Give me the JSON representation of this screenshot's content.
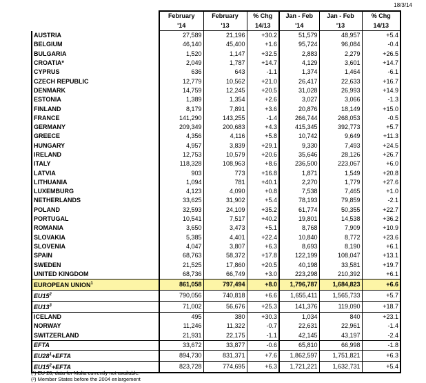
{
  "date": "18/3/14",
  "headers": [
    [
      "February",
      "'14"
    ],
    [
      "February",
      "'13"
    ],
    [
      "% Chg",
      "14/13"
    ],
    [
      "Jan - Feb",
      "'14"
    ],
    [
      "Jan - Feb",
      "'13"
    ],
    [
      "% Chg",
      "14/13"
    ]
  ],
  "rows": [
    {
      "label": "AUSTRIA",
      "v": [
        "27,589",
        "21,196",
        "+30.2",
        "51,579",
        "48,957",
        "+5.4"
      ]
    },
    {
      "label": "BELGIUM",
      "v": [
        "46,140",
        "45,400",
        "+1.6",
        "95,724",
        "96,084",
        "-0.4"
      ]
    },
    {
      "label": "BULGARIA",
      "v": [
        "1,520",
        "1,147",
        "+32.5",
        "2,883",
        "2,279",
        "+26.5"
      ]
    },
    {
      "label": "CROATIA*",
      "v": [
        "2,049",
        "1,787",
        "+14.7",
        "4,129",
        "3,601",
        "+14.7"
      ]
    },
    {
      "label": "CYPRUS",
      "v": [
        "636",
        "643",
        "-1.1",
        "1,374",
        "1,464",
        "-6.1"
      ]
    },
    {
      "label": "CZECH REPUBLIC",
      "v": [
        "12,779",
        "10,562",
        "+21.0",
        "26,417",
        "22,633",
        "+16.7"
      ]
    },
    {
      "label": "DENMARK",
      "v": [
        "14,759",
        "12,245",
        "+20.5",
        "31,028",
        "26,993",
        "+14.9"
      ]
    },
    {
      "label": "ESTONIA",
      "v": [
        "1,389",
        "1,354",
        "+2.6",
        "3,027",
        "3,066",
        "-1.3"
      ]
    },
    {
      "label": "FINLAND",
      "v": [
        "8,179",
        "7,891",
        "+3.6",
        "20,876",
        "18,149",
        "+15.0"
      ]
    },
    {
      "label": "FRANCE",
      "v": [
        "141,290",
        "143,255",
        "-1.4",
        "266,744",
        "268,053",
        "-0.5"
      ]
    },
    {
      "label": "GERMANY",
      "v": [
        "209,349",
        "200,683",
        "+4.3",
        "415,345",
        "392,773",
        "+5.7"
      ]
    },
    {
      "label": "GREECE",
      "v": [
        "4,356",
        "4,116",
        "+5.8",
        "10,742",
        "9,649",
        "+11.3"
      ]
    },
    {
      "label": "HUNGARY",
      "v": [
        "4,957",
        "3,839",
        "+29.1",
        "9,330",
        "7,493",
        "+24.5"
      ]
    },
    {
      "label": "IRELAND",
      "v": [
        "12,753",
        "10,579",
        "+20.6",
        "35,646",
        "28,126",
        "+26.7"
      ]
    },
    {
      "label": "ITALY",
      "v": [
        "118,328",
        "108,963",
        "+8.6",
        "236,500",
        "223,067",
        "+6.0"
      ]
    },
    {
      "label": "LATVIA",
      "v": [
        "903",
        "773",
        "+16.8",
        "1,871",
        "1,549",
        "+20.8"
      ]
    },
    {
      "label": "LITHUANIA",
      "v": [
        "1,094",
        "781",
        "+40.1",
        "2,270",
        "1,779",
        "+27.6"
      ]
    },
    {
      "label": "LUXEMBURG",
      "v": [
        "4,123",
        "4,090",
        "+0.8",
        "7,538",
        "7,465",
        "+1.0"
      ]
    },
    {
      "label": "NETHERLANDS",
      "v": [
        "33,625",
        "31,902",
        "+5.4",
        "78,193",
        "79,859",
        "-2.1"
      ]
    },
    {
      "label": "POLAND",
      "v": [
        "32,593",
        "24,109",
        "+35.2",
        "61,774",
        "50,355",
        "+22.7"
      ]
    },
    {
      "label": "PORTUGAL",
      "v": [
        "10,541",
        "7,517",
        "+40.2",
        "19,801",
        "14,538",
        "+36.2"
      ]
    },
    {
      "label": "ROMANIA",
      "v": [
        "3,650",
        "3,473",
        "+5.1",
        "8,768",
        "7,909",
        "+10.9"
      ]
    },
    {
      "label": "SLOVAKIA",
      "v": [
        "5,385",
        "4,401",
        "+22.4",
        "10,840",
        "8,772",
        "+23.6"
      ]
    },
    {
      "label": "SLOVENIA",
      "v": [
        "4,047",
        "3,807",
        "+6.3",
        "8,693",
        "8,190",
        "+6.1"
      ]
    },
    {
      "label": "SPAIN",
      "v": [
        "68,763",
        "58,372",
        "+17.8",
        "122,199",
        "108,047",
        "+13.1"
      ]
    },
    {
      "label": "SWEDEN",
      "v": [
        "21,525",
        "17,860",
        "+20.5",
        "40,198",
        "33,581",
        "+19.7"
      ]
    },
    {
      "label": "UNITED KINGDOM",
      "v": [
        "68,736",
        "66,749",
        "+3.0",
        "223,298",
        "210,392",
        "+6.1"
      ]
    },
    {
      "label": "EUROPEAN UNION",
      "sup": "1",
      "kind": "hl",
      "v": [
        "861,058",
        "797,494",
        "+8.0",
        "1,796,787",
        "1,684,823",
        "+6.6"
      ]
    },
    {
      "label": "EU15",
      "sup": "2",
      "kind": "it",
      "v": [
        "790,056",
        "740,818",
        "+6.6",
        "1,655,411",
        "1,565,733",
        "+5.7"
      ]
    },
    {
      "label": "EU13",
      "sup": "3",
      "kind": "it",
      "v": [
        "71,002",
        "56,676",
        "+25.3",
        "141,376",
        "119,090",
        "+18.7"
      ]
    },
    {
      "label": "ICELAND",
      "kind": "sep",
      "v": [
        "495",
        "380",
        "+30.3",
        "1,034",
        "840",
        "+23.1"
      ]
    },
    {
      "label": "NORWAY",
      "v": [
        "11,246",
        "11,322",
        "-0.7",
        "22,631",
        "22,961",
        "-1.4"
      ]
    },
    {
      "label": "SWITZERLAND",
      "v": [
        "21,931",
        "22,175",
        "-1.1",
        "42,145",
        "43,197",
        "-2.4"
      ]
    },
    {
      "label": "EFTA",
      "kind": "it",
      "v": [
        "33,672",
        "33,877",
        "-0.6",
        "65,810",
        "66,998",
        "-1.8"
      ]
    },
    {
      "label": "EU28",
      "sup": "1",
      "suffix": "+EFTA",
      "kind": "it",
      "v": [
        "894,730",
        "831,371",
        "+7.6",
        "1,862,597",
        "1,751,821",
        "+6.3"
      ]
    },
    {
      "label": "EU15",
      "sup": "2",
      "suffix": "+EFTA",
      "kind": "it",
      "v": [
        "823,728",
        "774,695",
        "+6.3",
        "1,721,221",
        "1,632,731",
        "+5.4"
      ]
    }
  ],
  "footnotes": [
    "(¹) EU 28; data for Malta currently not available.",
    "(²) Member States before the 2004 enlargement"
  ]
}
